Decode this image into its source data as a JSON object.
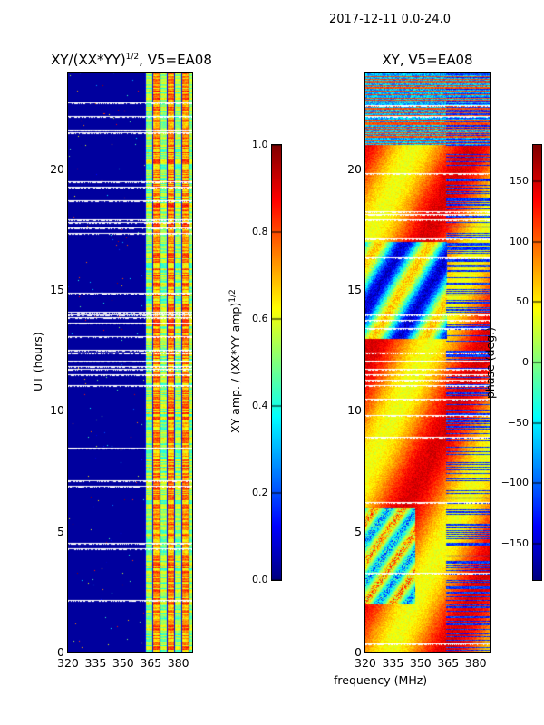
{
  "suptitle": "2017-12-11 0.0-24.0",
  "xlabel": "frequency (MHz)",
  "chart_data": [
    {
      "type": "heatmap",
      "title": "XY/(XX*YY)",
      "title_exp": "1/2",
      "title_suffix": ", V5=EA08",
      "xlabel": "",
      "ylabel": "UT (hours)",
      "xlim": [
        320,
        387.5
      ],
      "ylim": [
        0,
        24
      ],
      "xticks": [
        320,
        335,
        350,
        365,
        380
      ],
      "yticks": [
        0,
        5,
        10,
        15,
        20
      ],
      "colormap": "jet",
      "colorbar": {
        "label": "XY amp. / (XX*YY amp)",
        "label_exp": "1/2",
        "range": [
          0.0,
          1.0
        ],
        "ticks": [
          "0.0",
          "0.2",
          "0.4",
          "0.6",
          "0.8",
          "1.0"
        ],
        "tick_values": [
          0,
          0.2,
          0.4,
          0.6,
          0.8,
          1.0
        ]
      },
      "description_values": {
        "low_band_level": 0.02,
        "high_band_start_mhz": 362
      }
    },
    {
      "type": "heatmap",
      "title": "XY, V5=EA08",
      "xlabel": "frequency (MHz)",
      "ylabel": "",
      "xlim": [
        320,
        387.5
      ],
      "ylim": [
        0,
        24
      ],
      "xticks": [
        320,
        335,
        350,
        365,
        380
      ],
      "yticks": [
        0,
        5,
        10,
        15,
        20
      ],
      "colormap": "jet",
      "colorbar": {
        "label": "phase (deg.)",
        "range": [
          -180,
          180
        ],
        "ticks": [
          "−150",
          "−100",
          "−50",
          "0",
          "50",
          "100",
          "150"
        ],
        "tick_values": [
          -150,
          -100,
          -50,
          0,
          50,
          100,
          150
        ]
      }
    }
  ]
}
